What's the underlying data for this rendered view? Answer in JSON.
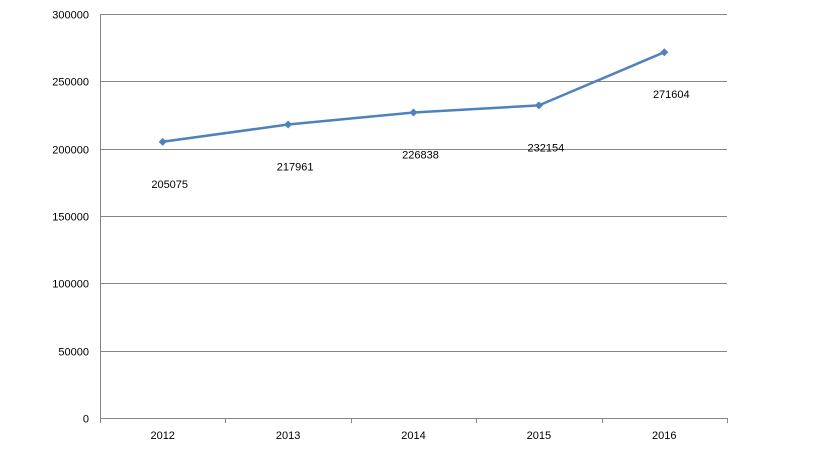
{
  "chart_data": {
    "type": "line",
    "categories": [
      "2012",
      "2013",
      "2014",
      "2015",
      "2016"
    ],
    "series": [
      {
        "values": [
          205075,
          217961,
          226838,
          232154,
          271604
        ]
      }
    ],
    "data_labels": [
      "205075",
      "217961",
      "226838",
      "232154",
      "271604"
    ],
    "y_ticks": [
      "0",
      "50000",
      "100000",
      "150000",
      "200000",
      "250000",
      "300000"
    ],
    "ylim": [
      0,
      300000
    ],
    "grid": true,
    "legend": "none",
    "colors": {
      "line": "#4f81bd",
      "grid": "#868686",
      "axis": "#868686"
    }
  }
}
